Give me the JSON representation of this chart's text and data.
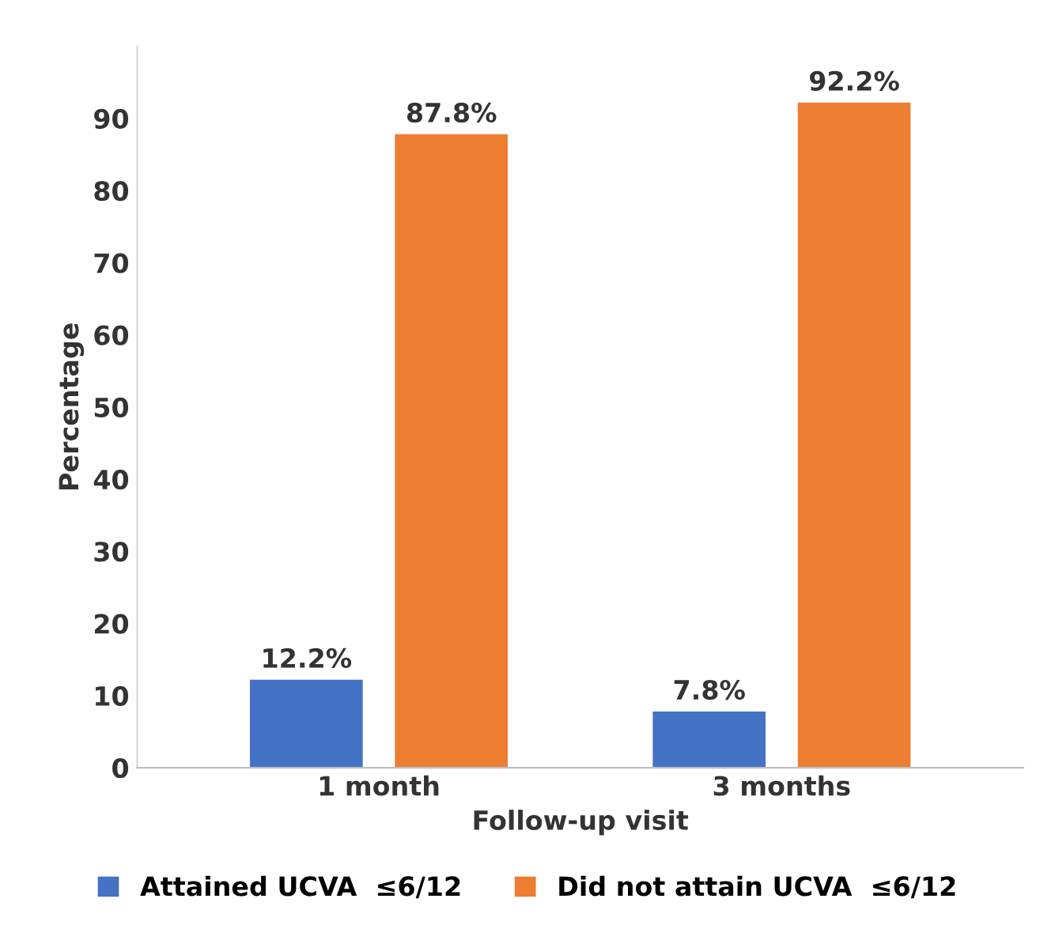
{
  "chart_data": {
    "type": "bar",
    "xlabel": "Follow-up visit",
    "ylabel": "Percentage",
    "categories": [
      "1 month",
      "3 months"
    ],
    "series": [
      {
        "name": "Attained UCVA  ≤6/12",
        "color": "#4472c4",
        "values": [
          12.2,
          7.8
        ],
        "value_labels": [
          "12.2%",
          "7.8%"
        ]
      },
      {
        "name": "Did not attain UCVA  ≤6/12",
        "color": "#ed7d31",
        "values": [
          87.8,
          92.2
        ],
        "value_labels": [
          "87.8%",
          "92.2%"
        ]
      }
    ],
    "ylim": [
      0,
      100
    ],
    "yticks": [
      0,
      10,
      20,
      30,
      40,
      50,
      60,
      70,
      80,
      90
    ],
    "grid": false,
    "legend": "bottom"
  }
}
